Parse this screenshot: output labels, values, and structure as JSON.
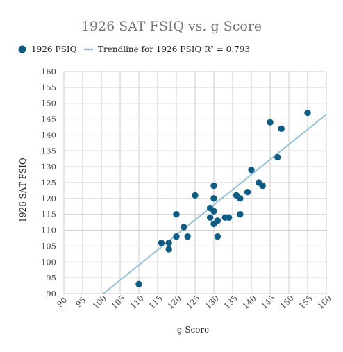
{
  "chart_data": {
    "type": "scatter",
    "title": "1926 SAT FSIQ vs. g Score",
    "xlabel": "g Score",
    "ylabel": "1926 SAT FSIQ",
    "xlim": [
      90,
      160
    ],
    "ylim": [
      90,
      160
    ],
    "x_ticks": [
      90,
      95,
      100,
      105,
      110,
      115,
      120,
      125,
      130,
      135,
      140,
      145,
      150,
      155,
      160
    ],
    "y_ticks": [
      90,
      95,
      100,
      105,
      110,
      115,
      120,
      125,
      130,
      135,
      140,
      145,
      150,
      155,
      160
    ],
    "grid": true,
    "legend_position": "top",
    "colors": {
      "points": "#0e5c84",
      "trendline": "#96bfd8",
      "grid": "#cccccc",
      "title": "#757575"
    },
    "series": [
      {
        "name": "1926 FSIQ",
        "points": [
          [
            110,
            93
          ],
          [
            116,
            106
          ],
          [
            118,
            104
          ],
          [
            118,
            106
          ],
          [
            120,
            108
          ],
          [
            120,
            115
          ],
          [
            122,
            111
          ],
          [
            123,
            108
          ],
          [
            125,
            121
          ],
          [
            129,
            117
          ],
          [
            129,
            114
          ],
          [
            130,
            124
          ],
          [
            130,
            120
          ],
          [
            130,
            116
          ],
          [
            130,
            112
          ],
          [
            131,
            113
          ],
          [
            131,
            108
          ],
          [
            133,
            114
          ],
          [
            134,
            114
          ],
          [
            136,
            121
          ],
          [
            137,
            120
          ],
          [
            137,
            115
          ],
          [
            139,
            122
          ],
          [
            140,
            129
          ],
          [
            142,
            125
          ],
          [
            143,
            124
          ],
          [
            145,
            144
          ],
          [
            147,
            133
          ],
          [
            148,
            142
          ],
          [
            155,
            147
          ]
        ]
      }
    ],
    "trendline": {
      "name": "Trendline for 1926 FSIQ",
      "r2_label": "R² = 0.793",
      "x_range": [
        100.5,
        160
      ],
      "y_range": [
        90,
        146.5
      ]
    }
  }
}
